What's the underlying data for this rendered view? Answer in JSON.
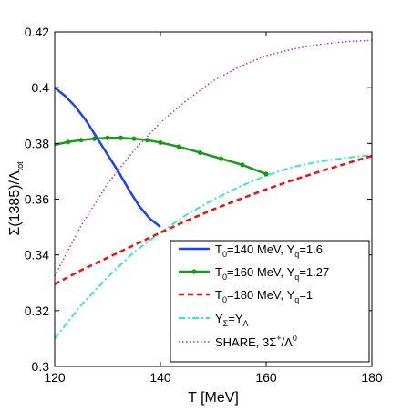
{
  "chart_data": {
    "type": "line",
    "xlabel": "T [MeV]",
    "ylabel": "Σ(1385)/Λ_tot",
    "xlim": [
      120,
      180
    ],
    "ylim": [
      0.3,
      0.42
    ],
    "xticks": [
      120,
      140,
      160,
      180
    ],
    "yticks": [
      0.3,
      0.32,
      0.34,
      0.36,
      0.38,
      0.4,
      0.42
    ],
    "grid": false,
    "legend_position": "bottom-right",
    "series": [
      {
        "name": "T0=140 MeV, Υq=1.6",
        "color": "#1f3fff",
        "style": "solid",
        "x": [
          120,
          122,
          124,
          126,
          128,
          130,
          132,
          134,
          136,
          138,
          140
        ],
        "y": [
          0.4,
          0.397,
          0.393,
          0.388,
          0.382,
          0.376,
          0.37,
          0.3635,
          0.3575,
          0.353,
          0.35
        ]
      },
      {
        "name": "T0=160 MeV, Υq=1.27",
        "color": "#1a9a1a",
        "style": "solid-markers",
        "x": [
          120,
          122.5,
          125,
          127.5,
          130,
          132.5,
          135,
          137.5,
          140,
          143.5,
          147.5,
          151.5,
          155.5,
          160
        ],
        "y": [
          0.3795,
          0.3805,
          0.3812,
          0.3817,
          0.382,
          0.382,
          0.3817,
          0.3812,
          0.3803,
          0.3788,
          0.3767,
          0.3745,
          0.3723,
          0.369
        ]
      },
      {
        "name": "T0=180 MeV, Υq=1",
        "color": "#ee1111",
        "style": "dashed",
        "x": [
          120,
          125,
          130,
          135,
          140,
          145,
          150,
          155,
          160,
          165,
          170,
          175,
          180
        ],
        "y": [
          0.3295,
          0.3345,
          0.339,
          0.3435,
          0.348,
          0.3523,
          0.3563,
          0.36,
          0.3635,
          0.3668,
          0.3698,
          0.3727,
          0.3755
        ]
      },
      {
        "name": "ΥΣ=ΥΛ",
        "color": "#3de8c0",
        "style": "dashdot",
        "x": [
          120,
          125,
          130,
          135,
          140,
          145,
          150,
          155,
          160,
          165,
          170,
          175,
          180
        ],
        "y": [
          0.31,
          0.322,
          0.332,
          0.341,
          0.348,
          0.3545,
          0.3598,
          0.3645,
          0.3685,
          0.3715,
          0.3735,
          0.3748,
          0.3758
        ]
      },
      {
        "name": "SHARE, 3Σ+/Λ0",
        "color": "#b030e0",
        "style": "dotted",
        "x": [
          120,
          125,
          130,
          135,
          140,
          145,
          150,
          155,
          160,
          165,
          170,
          175,
          180
        ],
        "y": [
          0.3325,
          0.3505,
          0.3655,
          0.3775,
          0.3875,
          0.3955,
          0.4025,
          0.4075,
          0.4115,
          0.4138,
          0.4155,
          0.4165,
          0.417
        ]
      }
    ]
  }
}
